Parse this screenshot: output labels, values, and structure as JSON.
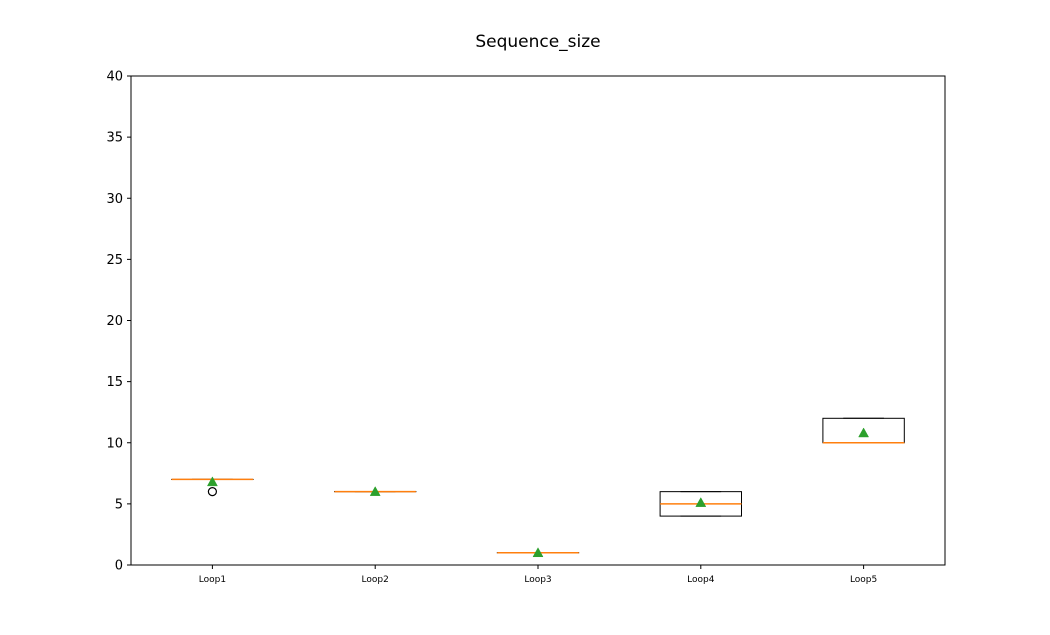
{
  "chart_data": {
    "type": "box",
    "title": "Sequence_size",
    "xlabel": "",
    "ylabel": "",
    "ylim": [
      0,
      40
    ],
    "yticks": [
      0,
      5,
      10,
      15,
      20,
      25,
      30,
      35,
      40
    ],
    "grid": false,
    "categories": [
      "Loop1",
      "Loop2",
      "Loop3",
      "Loop4",
      "Loop5"
    ],
    "boxes": [
      {
        "label": "Loop1",
        "whisker_low": 7,
        "q1": 7,
        "median": 7,
        "q3": 7,
        "whisker_high": 7,
        "mean": 6.8,
        "outliers": [
          6
        ]
      },
      {
        "label": "Loop2",
        "whisker_low": 6,
        "q1": 6,
        "median": 6,
        "q3": 6,
        "whisker_high": 6,
        "mean": 6.0,
        "outliers": []
      },
      {
        "label": "Loop3",
        "whisker_low": 1,
        "q1": 1,
        "median": 1,
        "q3": 1,
        "whisker_high": 1,
        "mean": 1.0,
        "outliers": []
      },
      {
        "label": "Loop4",
        "whisker_low": 4,
        "q1": 4,
        "median": 5,
        "q3": 6,
        "whisker_high": 6,
        "mean": 5.1,
        "outliers": []
      },
      {
        "label": "Loop5",
        "whisker_low": 10,
        "q1": 10,
        "median": 10,
        "q3": 12,
        "whisker_high": 12,
        "mean": 10.8,
        "outliers": []
      }
    ],
    "colors": {
      "box": "#000000",
      "median": "#ff7f0e",
      "mean": "#2ca02c",
      "outlier": "#000000"
    }
  }
}
